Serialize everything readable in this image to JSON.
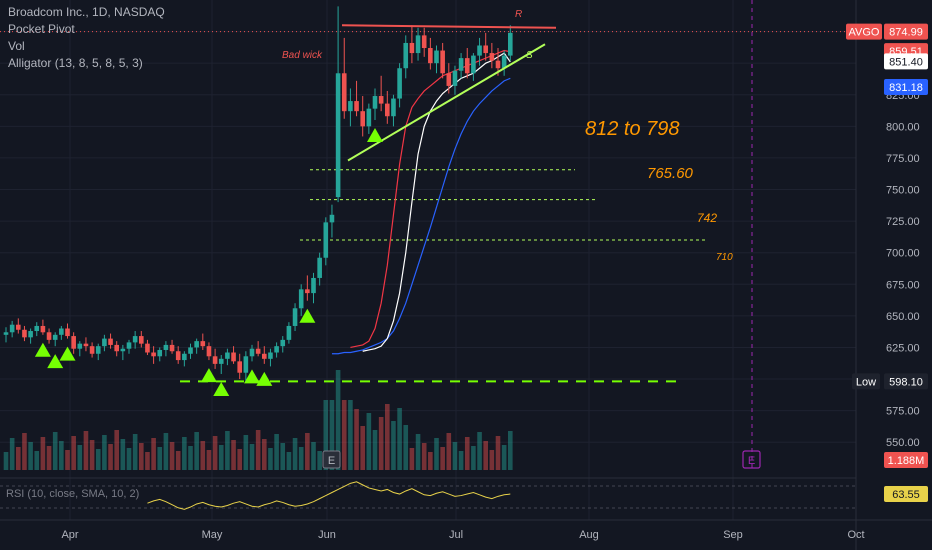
{
  "legend": {
    "symbol_line": "Broadcom Inc., 1D, NASDAQ",
    "indicator_1": "Pocket Pivot",
    "indicator_2": "Vol",
    "indicator_3": "Alligator (13, 8, 5, 8, 5, 3)"
  },
  "annotations": {
    "bad_wick": "Bad wick",
    "resistance": "R",
    "support": "S",
    "target_1": "812 to 798",
    "target_2": "765.60",
    "target_3": "742",
    "target_4": "710",
    "earnings_marker": "E"
  },
  "price_tags": {
    "symbol": "AVGO",
    "last": "874.99",
    "tag_2": "859.51",
    "tag_3": "851.40",
    "tag_4": "831.18",
    "low_label": "Low",
    "low_value": "598.10",
    "volume_value": "1.188M",
    "rsi_value": "63.55"
  },
  "rsi_label": "RSI (10, close, SMA, 10, 2)",
  "colors": {
    "background": "#131722",
    "up": "#26a69a",
    "down": "#ef5350",
    "alligator_red": "#f23645",
    "alligator_white": "#ffffff",
    "alligator_blue": "#2962ff",
    "annotation": "#ff9800",
    "trendline": "#b2ff59",
    "pivot_marker": "#76ff03",
    "rsi_line": "#e8d24a",
    "earnings": "#9c27b0"
  },
  "chart_data": {
    "type": "candlestick",
    "price_axis": {
      "ticks": [
        550,
        575,
        600,
        625,
        650,
        675,
        700,
        725,
        750,
        775,
        800,
        825,
        850,
        875
      ],
      "range": [
        528,
        900
      ]
    },
    "time_axis": {
      "labels": [
        "Apr",
        "May",
        "Jun",
        "Jul",
        "Aug",
        "Sep",
        "Oct"
      ]
    },
    "candles": [
      [
        635,
        641,
        629,
        637
      ],
      [
        637,
        646,
        633,
        643
      ],
      [
        643,
        648,
        636,
        639
      ],
      [
        639,
        642,
        630,
        633
      ],
      [
        633,
        640,
        628,
        638
      ],
      [
        638,
        645,
        634,
        642
      ],
      [
        642,
        647,
        635,
        637
      ],
      [
        637,
        640,
        628,
        631
      ],
      [
        631,
        637,
        626,
        635
      ],
      [
        635,
        642,
        631,
        640
      ],
      [
        640,
        644,
        632,
        634
      ],
      [
        634,
        637,
        620,
        624
      ],
      [
        624,
        630,
        618,
        628
      ],
      [
        628,
        633,
        622,
        626
      ],
      [
        626,
        629,
        617,
        620
      ],
      [
        620,
        628,
        615,
        626
      ],
      [
        626,
        635,
        622,
        632
      ],
      [
        632,
        636,
        624,
        627
      ],
      [
        627,
        630,
        618,
        622
      ],
      [
        622,
        627,
        615,
        624
      ],
      [
        624,
        631,
        620,
        629
      ],
      [
        629,
        638,
        624,
        634
      ],
      [
        634,
        638,
        625,
        628
      ],
      [
        628,
        631,
        619,
        621
      ],
      [
        621,
        626,
        612,
        618
      ],
      [
        618,
        625,
        614,
        623
      ],
      [
        623,
        630,
        618,
        627
      ],
      [
        627,
        631,
        620,
        622
      ],
      [
        622,
        626,
        612,
        615
      ],
      [
        615,
        622,
        610,
        620
      ],
      [
        620,
        628,
        616,
        625
      ],
      [
        625,
        632,
        620,
        630
      ],
      [
        630,
        636,
        623,
        626
      ],
      [
        626,
        629,
        615,
        618
      ],
      [
        618,
        624,
        608,
        612
      ],
      [
        612,
        619,
        604,
        616
      ],
      [
        616,
        624,
        611,
        621
      ],
      [
        621,
        626,
        612,
        614
      ],
      [
        614,
        620,
        600,
        605
      ],
      [
        605,
        622,
        598,
        618
      ],
      [
        618,
        627,
        614,
        624
      ],
      [
        624,
        630,
        618,
        620
      ],
      [
        620,
        626,
        612,
        616
      ],
      [
        616,
        624,
        610,
        621
      ],
      [
        621,
        629,
        617,
        626
      ],
      [
        626,
        634,
        621,
        631
      ],
      [
        631,
        645,
        628,
        642
      ],
      [
        642,
        660,
        638,
        656
      ],
      [
        656,
        675,
        650,
        671
      ],
      [
        671,
        682,
        662,
        668
      ],
      [
        668,
        684,
        660,
        680
      ],
      [
        680,
        700,
        674,
        696
      ],
      [
        696,
        728,
        690,
        724
      ],
      [
        724,
        738,
        712,
        730
      ],
      [
        744,
        895,
        740,
        842
      ],
      [
        842,
        870,
        806,
        812
      ],
      [
        812,
        830,
        800,
        820
      ],
      [
        820,
        836,
        808,
        812
      ],
      [
        812,
        824,
        792,
        800
      ],
      [
        800,
        818,
        794,
        814
      ],
      [
        814,
        830,
        805,
        824
      ],
      [
        824,
        840,
        812,
        818
      ],
      [
        818,
        828,
        802,
        808
      ],
      [
        808,
        825,
        800,
        822
      ],
      [
        822,
        850,
        815,
        846
      ],
      [
        846,
        872,
        838,
        866
      ],
      [
        866,
        880,
        850,
        858
      ],
      [
        858,
        878,
        852,
        872
      ],
      [
        872,
        878,
        855,
        862
      ],
      [
        862,
        870,
        845,
        850
      ],
      [
        850,
        864,
        842,
        860
      ],
      [
        860,
        866,
        838,
        842
      ],
      [
        842,
        850,
        826,
        832
      ],
      [
        832,
        848,
        825,
        844
      ],
      [
        844,
        858,
        838,
        854
      ],
      [
        854,
        862,
        838,
        842
      ],
      [
        842,
        858,
        836,
        856
      ],
      [
        856,
        870,
        848,
        864
      ],
      [
        864,
        874,
        852,
        858
      ],
      [
        858,
        866,
        846,
        852
      ],
      [
        852,
        862,
        840,
        846
      ],
      [
        846,
        860,
        840,
        856
      ],
      [
        856,
        880,
        852,
        874
      ]
    ],
    "alligator": {
      "blue_jaw": [
        620,
        620,
        621,
        621,
        622,
        623,
        625,
        627,
        629,
        632,
        638,
        648,
        660,
        675,
        690,
        705,
        720,
        736,
        752,
        768,
        782,
        794,
        804,
        812,
        818,
        823,
        828,
        832,
        836,
        838
      ],
      "red_teeth": [
        625,
        626,
        627,
        630,
        640,
        660,
        690,
        730,
        770,
        800,
        815,
        822,
        828,
        832,
        836,
        840,
        842,
        844,
        846,
        848,
        850,
        852,
        854,
        856,
        858,
        860,
        859
      ],
      "white_lips": [
        622,
        623,
        624,
        626,
        632,
        646,
        668,
        700,
        740,
        778,
        800,
        812,
        820,
        826,
        830,
        834,
        838,
        840,
        842,
        846,
        850,
        852,
        855,
        858,
        851
      ]
    },
    "levels": [
      {
        "label": "812 to 798",
        "values": [
          812,
          798
        ]
      },
      {
        "label": "765.60",
        "value": 765.6
      },
      {
        "label": "742",
        "value": 742
      },
      {
        "label": "710",
        "value": 710
      },
      {
        "label": "Low 598.10",
        "value": 598.1
      }
    ],
    "pocket_pivot_markers": [
      6,
      8,
      10,
      33,
      35,
      40,
      42,
      49,
      60
    ],
    "rsi": [
      52,
      55,
      57,
      54,
      50,
      46,
      44,
      47,
      51,
      53,
      50,
      48,
      47,
      49,
      52,
      54,
      51,
      48,
      47,
      50,
      52,
      55,
      53,
      50,
      48,
      49,
      51,
      54,
      58,
      62,
      66,
      70,
      74,
      78,
      80,
      76,
      72,
      70,
      68,
      70,
      66,
      64,
      68,
      71,
      67,
      63,
      62,
      65,
      67,
      64,
      61,
      62,
      64,
      66,
      63,
      60,
      58,
      61,
      63,
      64
    ]
  }
}
